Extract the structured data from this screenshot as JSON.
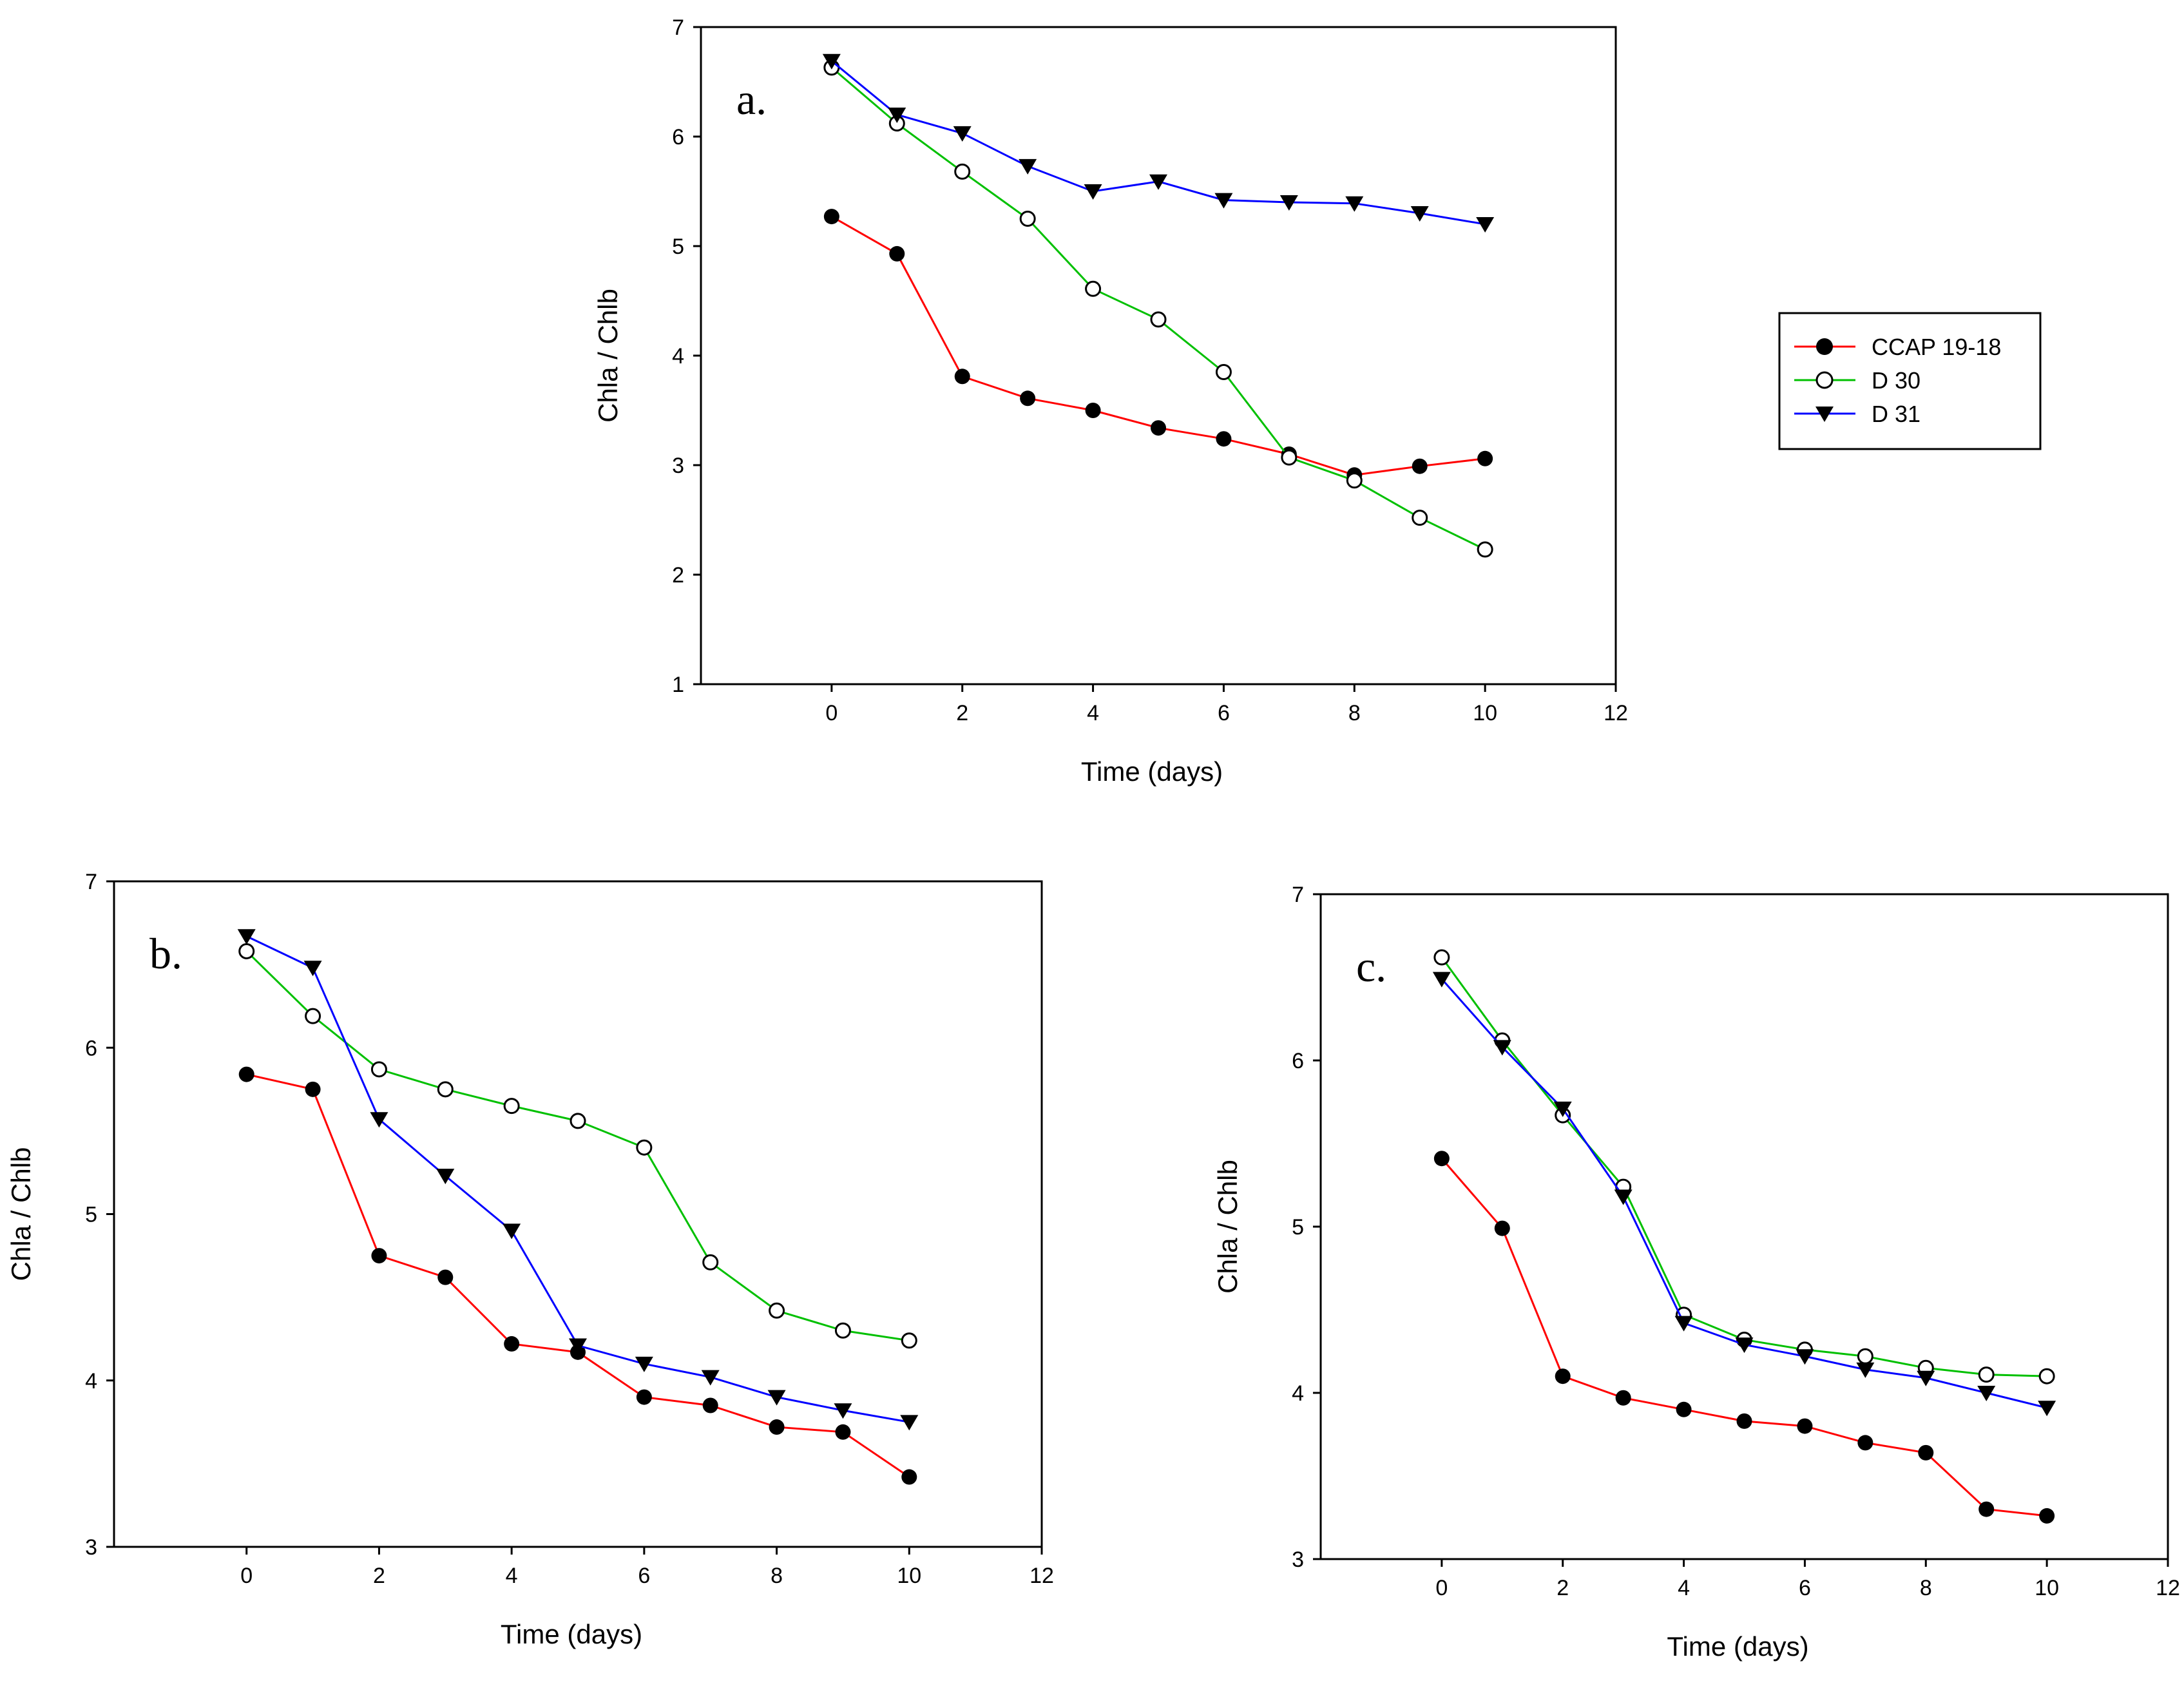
{
  "legend": [
    {
      "label": "CCAP 19-18",
      "color": "#ff0000",
      "marker": "filled-circle"
    },
    {
      "label": "D 30",
      "color": "#00c000",
      "marker": "open-circle"
    },
    {
      "label": "D 31",
      "color": "#0000ff",
      "marker": "filled-triangle-down"
    }
  ],
  "chart_data": [
    {
      "type": "line",
      "panel_label": "a.",
      "xlabel": "Time (days)",
      "ylabel": "Chla / Chlb",
      "xlim": [
        -2,
        12
      ],
      "ylim": [
        1,
        7
      ],
      "xticks": [
        "0",
        "2",
        "4",
        "6",
        "8",
        "10",
        "12"
      ],
      "yticks": [
        "1",
        "2",
        "3",
        "4",
        "5",
        "6",
        "7"
      ],
      "x": [
        0,
        1,
        2,
        3,
        4,
        5,
        6,
        7,
        8,
        9,
        10
      ],
      "series": [
        {
          "name": "CCAP 19-18",
          "values": [
            5.27,
            4.93,
            3.81,
            3.61,
            3.5,
            3.34,
            3.24,
            3.1,
            2.91,
            2.99,
            3.06
          ]
        },
        {
          "name": "D 30",
          "values": [
            6.63,
            6.12,
            5.68,
            5.25,
            4.61,
            4.33,
            3.85,
            3.07,
            2.86,
            2.52,
            2.23
          ]
        },
        {
          "name": "D 31",
          "values": [
            6.69,
            6.2,
            6.03,
            5.73,
            5.5,
            5.59,
            5.42,
            5.4,
            5.39,
            5.3,
            5.2
          ]
        }
      ]
    },
    {
      "type": "line",
      "panel_label": "b.",
      "xlabel": "Time (days)",
      "ylabel": "Chla / Chlb",
      "xlim": [
        -2,
        12
      ],
      "ylim": [
        3,
        7
      ],
      "xticks": [
        "0",
        "2",
        "4",
        "6",
        "8",
        "10",
        "12"
      ],
      "yticks": [
        "3",
        "4",
        "5",
        "6",
        "7"
      ],
      "x": [
        0,
        1,
        2,
        3,
        4,
        5,
        6,
        7,
        8,
        9,
        10
      ],
      "series": [
        {
          "name": "CCAP 19-18",
          "values": [
            5.84,
            5.75,
            4.75,
            4.62,
            4.22,
            4.17,
            3.9,
            3.85,
            3.72,
            3.69,
            3.42
          ]
        },
        {
          "name": "D 30",
          "values": [
            6.58,
            6.19,
            5.87,
            5.75,
            5.65,
            5.56,
            5.4,
            4.71,
            4.42,
            4.3,
            4.24
          ]
        },
        {
          "name": "D 31",
          "values": [
            6.67,
            6.48,
            5.57,
            5.23,
            4.9,
            4.21,
            4.1,
            4.02,
            3.9,
            3.82,
            3.75
          ]
        }
      ]
    },
    {
      "type": "line",
      "panel_label": "c.",
      "xlabel": "Time (days)",
      "ylabel": "Chla / Chlb",
      "xlim": [
        -2,
        12
      ],
      "ylim": [
        3,
        7
      ],
      "xticks": [
        "0",
        "2",
        "4",
        "6",
        "8",
        "10",
        "12"
      ],
      "yticks": [
        "3",
        "4",
        "5",
        "6",
        "7"
      ],
      "x": [
        0,
        1,
        2,
        3,
        4,
        5,
        6,
        7,
        8,
        9,
        10
      ],
      "series": [
        {
          "name": "CCAP 19-18",
          "values": [
            5.41,
            4.99,
            4.1,
            3.97,
            3.9,
            3.83,
            3.8,
            3.7,
            3.64,
            3.3,
            3.26
          ]
        },
        {
          "name": "D 30",
          "values": [
            6.62,
            6.12,
            5.67,
            5.24,
            4.47,
            4.32,
            4.26,
            4.22,
            4.15,
            4.11,
            4.1
          ]
        },
        {
          "name": "D 31",
          "values": [
            6.49,
            6.08,
            5.71,
            5.18,
            4.42,
            4.29,
            4.22,
            4.14,
            4.09,
            4.0,
            3.91
          ]
        }
      ]
    }
  ]
}
